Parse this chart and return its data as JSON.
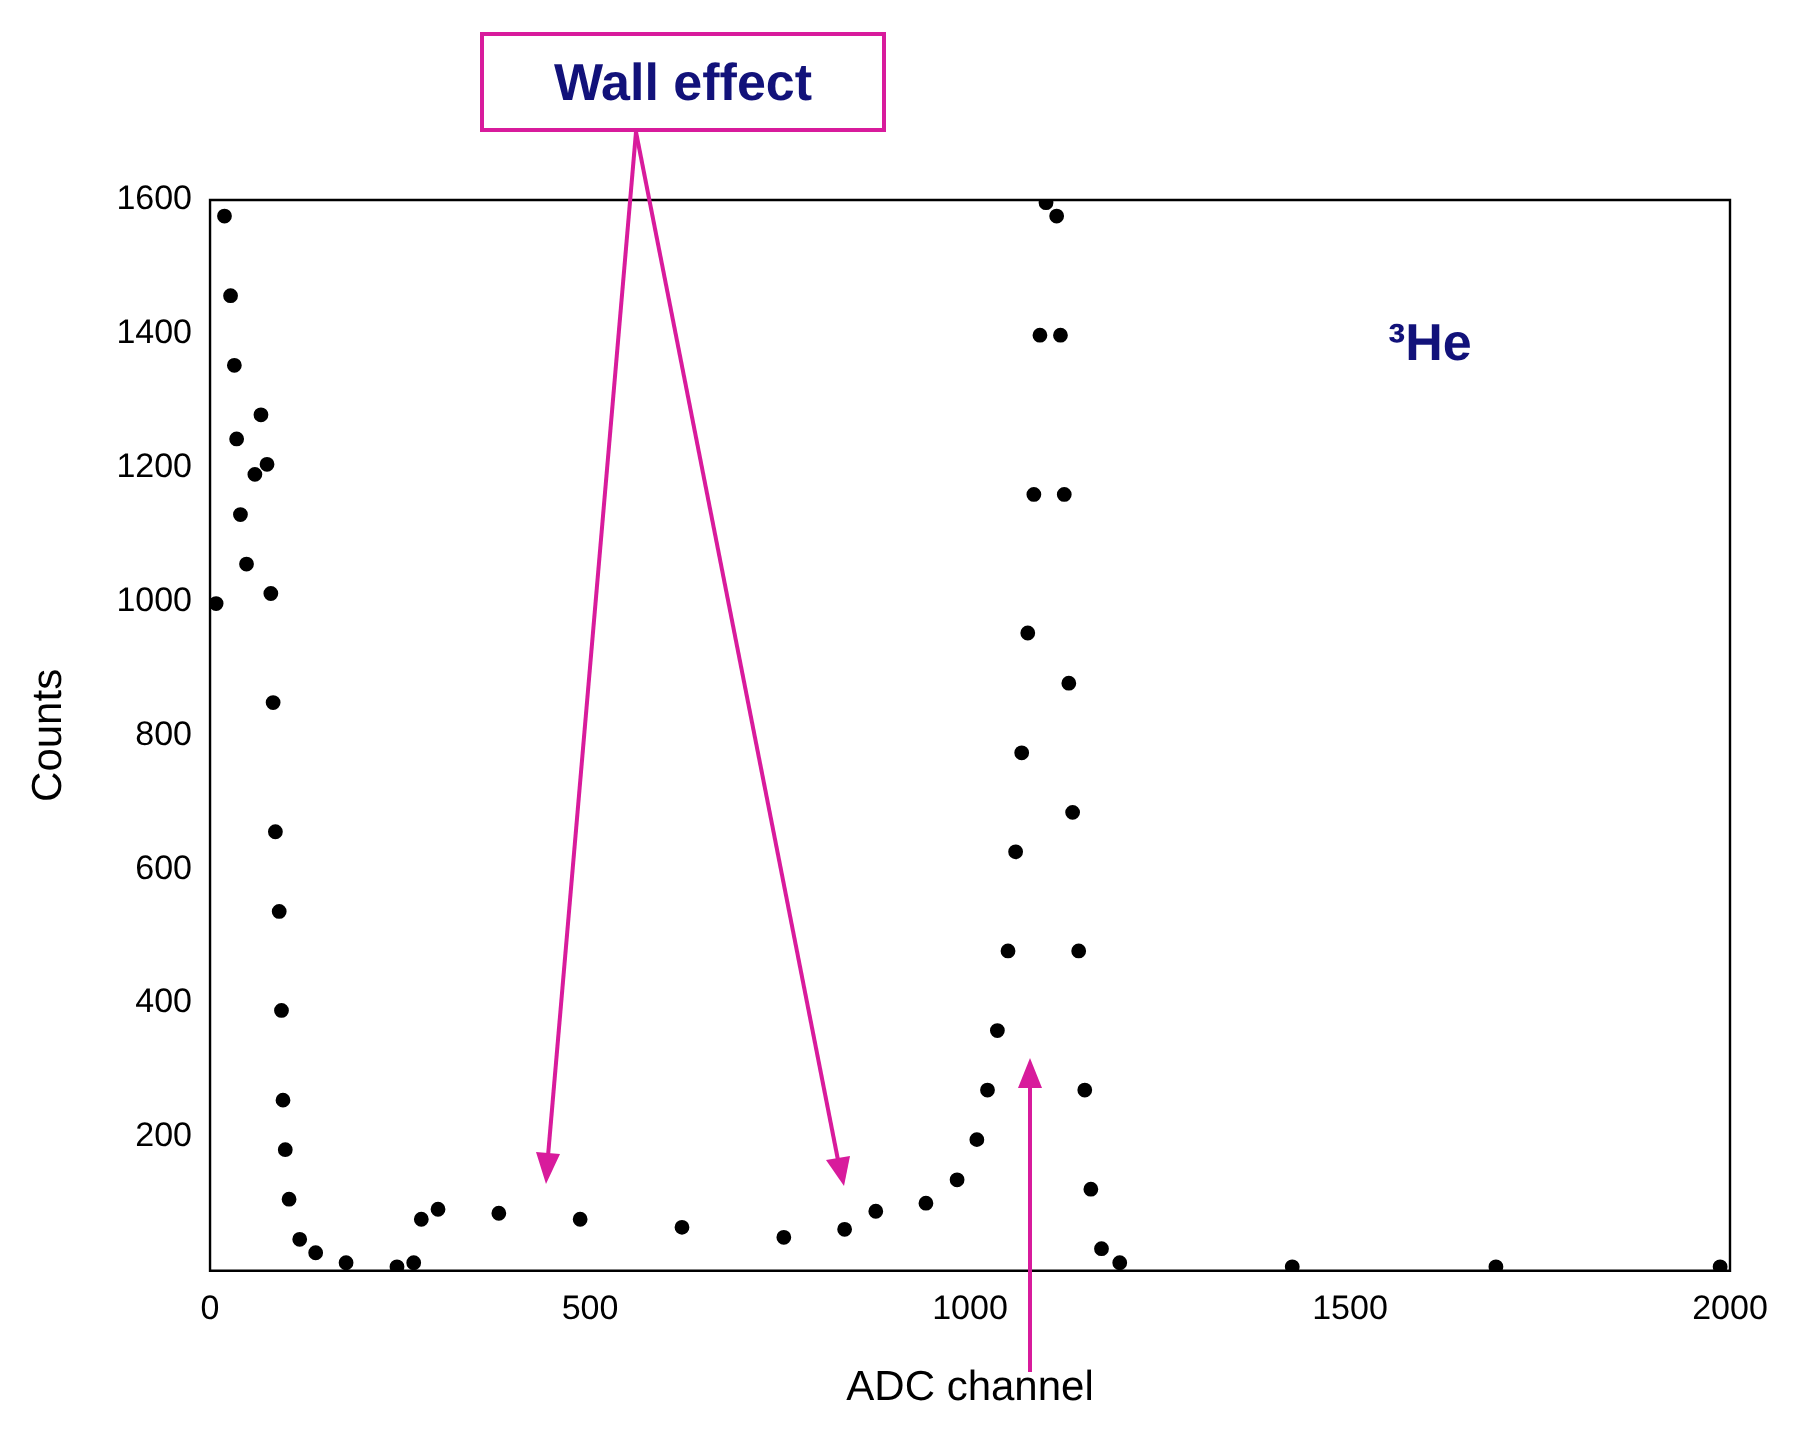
{
  "chart_data": {
    "type": "scatter",
    "xlabel": "ADC channel",
    "ylabel": "Counts",
    "annotations": [
      "Wall effect",
      "³He"
    ],
    "xlim": [
      0,
      2000
    ],
    "xticks": [
      0,
      500,
      1000,
      1500,
      2000
    ],
    "ylim": [
      0,
      1600
    ],
    "yticks": [
      200,
      400,
      600,
      800,
      1000,
      1200,
      1400,
      1600
    ],
    "grid": false,
    "legend": false,
    "marker": "circle",
    "series": [
      {
        "color": "#000000",
        "x": [
          8,
          19,
          27,
          32,
          35,
          40,
          48,
          59,
          67,
          75,
          80,
          83,
          86,
          91,
          94,
          96,
          99,
          104,
          118,
          139,
          179,
          246,
          268,
          278,
          300,
          380,
          487,
          621,
          755,
          835,
          876,
          942,
          983,
          1009,
          1023,
          1036,
          1050,
          1060,
          1068,
          1076,
          1084,
          1092,
          1100,
          1114,
          1119,
          1124,
          1130,
          1135,
          1143,
          1151,
          1159,
          1173,
          1197,
          1424,
          1692,
          1987
        ],
        "values": [
          997,
          1576,
          1457,
          1353,
          1243,
          1130,
          1056,
          1190,
          1279,
          1205,
          1012,
          849,
          656,
          537,
          389,
          255,
          181,
          107,
          47,
          27,
          12,
          6,
          12,
          77,
          92,
          86,
          77,
          65,
          50,
          62,
          89,
          101,
          136,
          196,
          270,
          359,
          478,
          626,
          774,
          953,
          1160,
          1398,
          1596,
          1576,
          1398,
          1160,
          878,
          685,
          478,
          270,
          122,
          33,
          12,
          6,
          6,
          6
        ]
      }
    ]
  }
}
